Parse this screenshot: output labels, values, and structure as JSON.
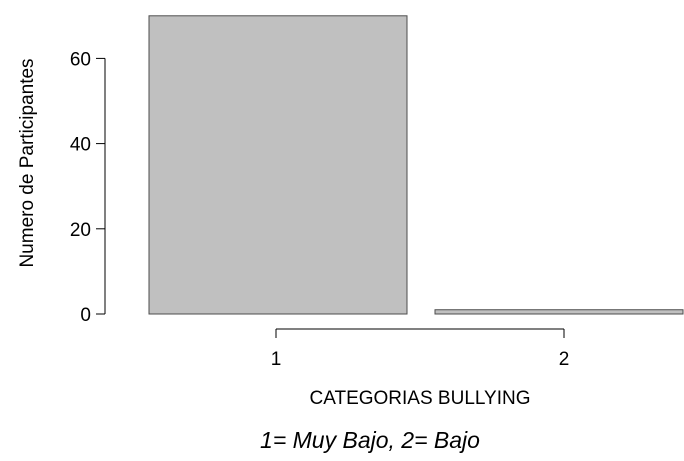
{
  "chart_data": {
    "type": "bar",
    "categories": [
      "1",
      "2"
    ],
    "values": [
      70,
      1
    ],
    "title": "",
    "xlabel": "CATEGORIAS BULLYING",
    "ylabel": "Numero de Participantes",
    "ylim": [
      0,
      70
    ],
    "y_ticks": [
      0,
      20,
      40,
      60
    ],
    "grid": false,
    "legend": "none",
    "caption": "1= Muy Bajo, 2= Bajo",
    "colors": {
      "bar_fill": "#c0c0c0",
      "bar_stroke": "#4d4d4d",
      "axis": "#000000"
    }
  }
}
